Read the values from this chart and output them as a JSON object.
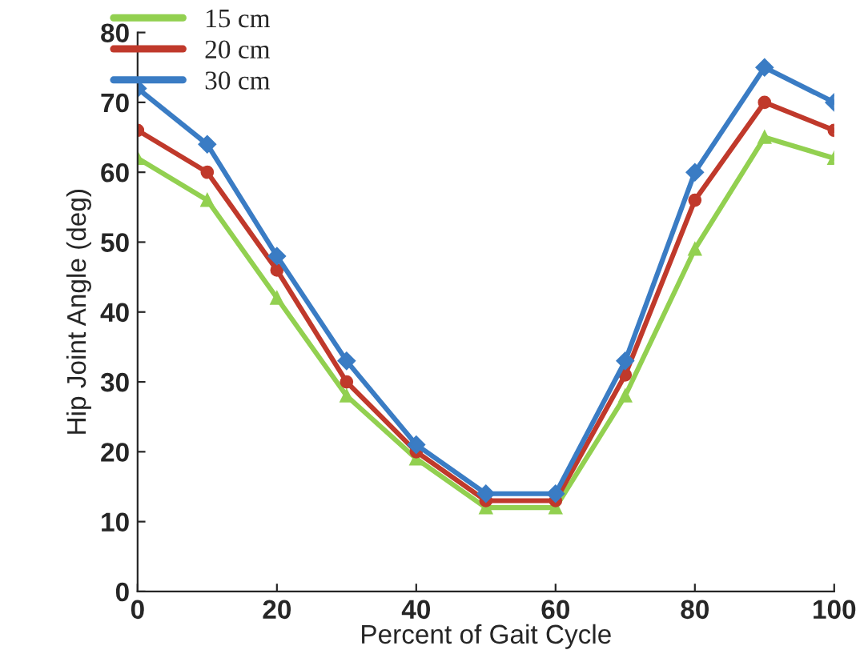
{
  "chart_data": {
    "type": "line",
    "xlabel": "Percent of Gait Cycle",
    "ylabel": "Hip Joint Angle (deg)",
    "x": [
      0,
      10,
      20,
      30,
      40,
      50,
      60,
      70,
      80,
      90,
      100
    ],
    "series": [
      {
        "name": "15 cm",
        "color": "#92d050",
        "marker": "triangle",
        "values": [
          62,
          56,
          42,
          28,
          19,
          12,
          12,
          28,
          49,
          65,
          62
        ]
      },
      {
        "name": "20 cm",
        "color": "#c0392b",
        "marker": "circle",
        "values": [
          66,
          60,
          46,
          30,
          20,
          13,
          13,
          31,
          56,
          70,
          66
        ]
      },
      {
        "name": "30 cm",
        "color": "#3a7cc4",
        "marker": "diamond",
        "values": [
          72,
          64,
          48,
          33,
          21,
          14,
          14,
          33,
          60,
          75,
          70
        ]
      }
    ],
    "xlim": [
      0,
      100
    ],
    "xticks": [
      0,
      20,
      40,
      60,
      80,
      100
    ],
    "ylim": [
      0,
      80
    ],
    "yticks": [
      0,
      10,
      20,
      30,
      40,
      50,
      60,
      70,
      80
    ],
    "grid": false,
    "legend": "top left",
    "line_style": "solid"
  }
}
